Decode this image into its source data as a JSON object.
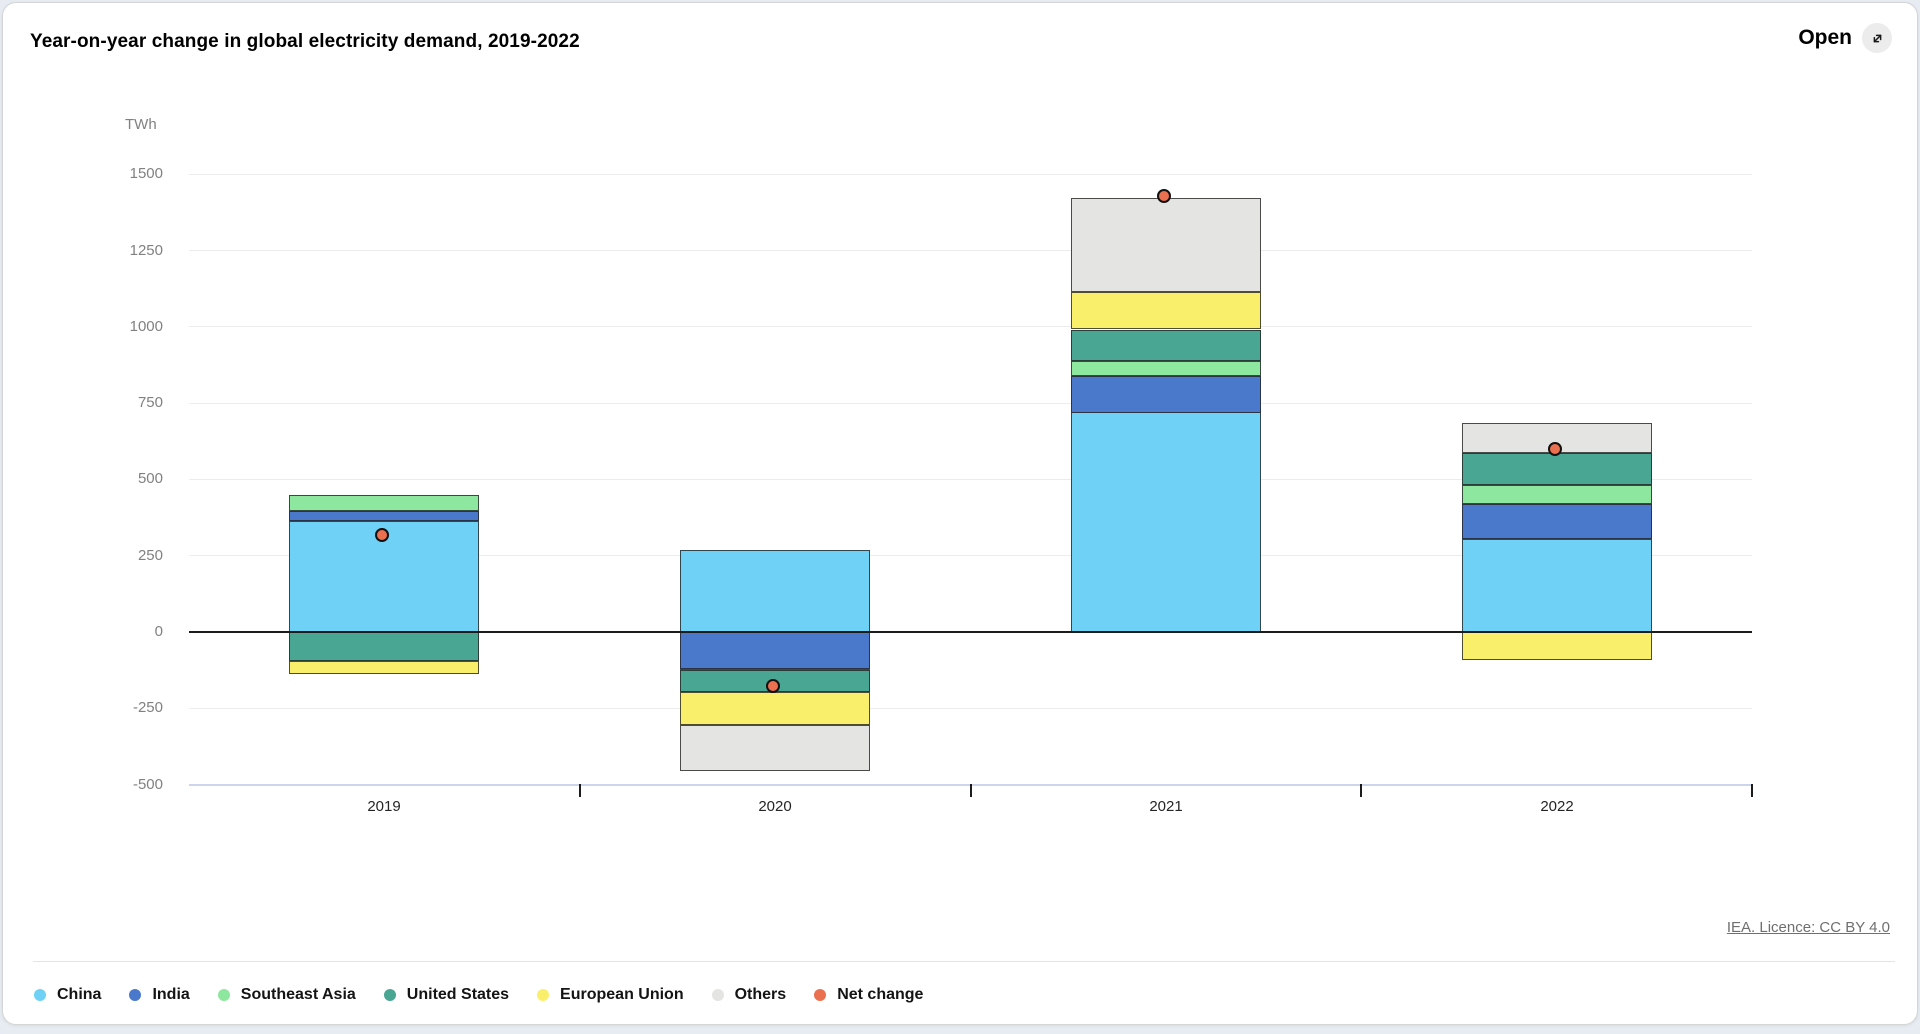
{
  "header": {
    "title": "Year-on-year change in global electricity demand, 2019-2022",
    "open_label": "Open"
  },
  "footer": {
    "license_text": "IEA. Licence: CC BY 4.0"
  },
  "chart_data": {
    "type": "bar",
    "stacked": true,
    "title": "Year-on-year change in global electricity demand, 2019-2022",
    "ylabel": "TWh",
    "xlabel": "",
    "ylim": [
      -500,
      1500
    ],
    "y_ticks": [
      1500,
      1250,
      1000,
      750,
      500,
      250,
      0,
      -250,
      -500
    ],
    "grid": true,
    "legend_position": "bottom",
    "categories": [
      "2019",
      "2020",
      "2021",
      "2022"
    ],
    "series": [
      {
        "name": "China",
        "color": "#6fd1f6",
        "values": [
          365,
          270,
          720,
          305
        ]
      },
      {
        "name": "India",
        "color": "#4a79cc",
        "values": [
          32,
          -120,
          120,
          115
        ]
      },
      {
        "name": "Southeast Asia",
        "color": "#8ee79f",
        "values": [
          52,
          -5,
          48,
          61
        ]
      },
      {
        "name": "United States",
        "color": "#49a693",
        "values": [
          -96,
          -72,
          103,
          106
        ]
      },
      {
        "name": "European Union",
        "color": "#faef6b",
        "values": [
          -43,
          -108,
          122,
          -91
        ]
      },
      {
        "name": "Others",
        "color": "#e4e4e2",
        "values": [
          0,
          -150,
          309,
          98
        ]
      }
    ],
    "net_change": {
      "name": "Net change",
      "color": "#ea7050",
      "values": [
        310,
        -185,
        1422,
        594
      ]
    }
  }
}
